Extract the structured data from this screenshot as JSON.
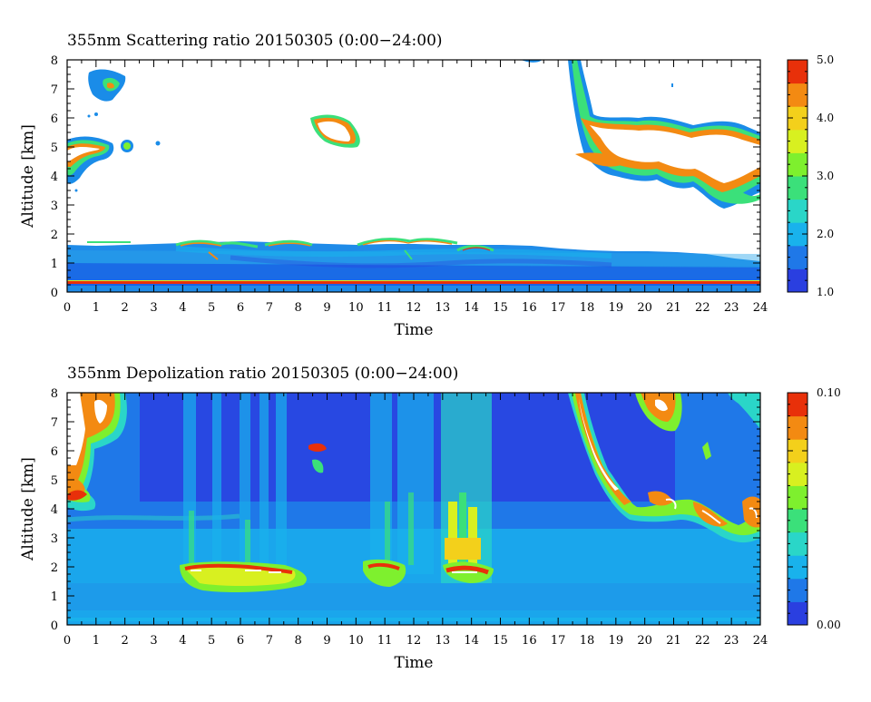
{
  "colormap": [
    "#2a3fe0",
    "#1f78e8",
    "#19b2ec",
    "#2ad6c8",
    "#3be07a",
    "#7ef02e",
    "#d8f020",
    "#f3d01b",
    "#f38a12",
    "#e8300a"
  ],
  "chart_data": [
    {
      "type": "heatmap",
      "title": "355nm Scattering ratio  20150305 (0:00−24:00)",
      "xlabel": "Time",
      "ylabel": "Altitude [km]",
      "xlim": [
        0,
        24
      ],
      "ylim": [
        0,
        8
      ],
      "x_ticks": [
        "0",
        "1",
        "2",
        "3",
        "4",
        "5",
        "6",
        "7",
        "8",
        "9",
        "10",
        "11",
        "12",
        "13",
        "14",
        "15",
        "16",
        "17",
        "18",
        "19",
        "20",
        "21",
        "22",
        "23",
        "24"
      ],
      "y_ticks": [
        "0",
        "1",
        "2",
        "3",
        "4",
        "5",
        "6",
        "7",
        "8"
      ],
      "colorbar": {
        "min": 1.0,
        "max": 5.0,
        "tick_labels": [
          "1.0",
          "2.0",
          "3.0",
          "4.0",
          "5.0"
        ]
      },
      "features": [
        {
          "name": "boundary-layer",
          "x": [
            0,
            24
          ],
          "top_km": 1.5,
          "value": 1.6
        },
        {
          "name": "surface-layer",
          "x": [
            0,
            24
          ],
          "y": [
            0.25,
            0.35
          ],
          "value": 5.0
        },
        {
          "name": "cloud-early",
          "x": [
            0,
            2.0
          ],
          "y": [
            3.7,
            7.8
          ],
          "value": 5.0
        },
        {
          "name": "cloud-small",
          "x": [
            8.4,
            10.0
          ],
          "y": [
            5.2,
            6.1
          ],
          "value": 5.0
        },
        {
          "name": "cloud-late",
          "x": [
            17.2,
            24
          ],
          "y": [
            2.9,
            8.0
          ],
          "value": 5.0
        }
      ]
    },
    {
      "type": "heatmap",
      "title": "355nm Depolization ratio  20150305 (0:00−24:00)",
      "xlabel": "Time",
      "ylabel": "Altitude [km]",
      "xlim": [
        0,
        24
      ],
      "ylim": [
        0,
        8
      ],
      "x_ticks": [
        "0",
        "1",
        "2",
        "3",
        "4",
        "5",
        "6",
        "7",
        "8",
        "9",
        "10",
        "11",
        "12",
        "13",
        "14",
        "15",
        "16",
        "17",
        "18",
        "19",
        "20",
        "21",
        "22",
        "23",
        "24"
      ],
      "y_ticks": [
        "0",
        "1",
        "2",
        "3",
        "4",
        "5",
        "6",
        "7",
        "8"
      ],
      "colorbar": {
        "min": 0.0,
        "max": 0.1,
        "tick_labels": [
          "0.00",
          "0.10"
        ]
      },
      "features": [
        {
          "name": "dust-layer-a",
          "x": [
            3.9,
            8.0
          ],
          "y": [
            1.2,
            2.0
          ],
          "value": 0.1
        },
        {
          "name": "dust-layer-b",
          "x": [
            10.4,
            12.5
          ],
          "y": [
            1.4,
            2.2
          ],
          "value": 0.09
        },
        {
          "name": "dust-layer-c",
          "x": [
            12.8,
            14.6
          ],
          "y": [
            1.5,
            3.5
          ],
          "value": 0.1
        },
        {
          "name": "cloud-early",
          "x": [
            0,
            2.0
          ],
          "y": [
            3.8,
            8.0
          ],
          "value": 0.1
        },
        {
          "name": "cloud-late",
          "x": [
            17.2,
            24
          ],
          "y": [
            2.9,
            8.0
          ],
          "value": 0.1
        }
      ]
    }
  ]
}
